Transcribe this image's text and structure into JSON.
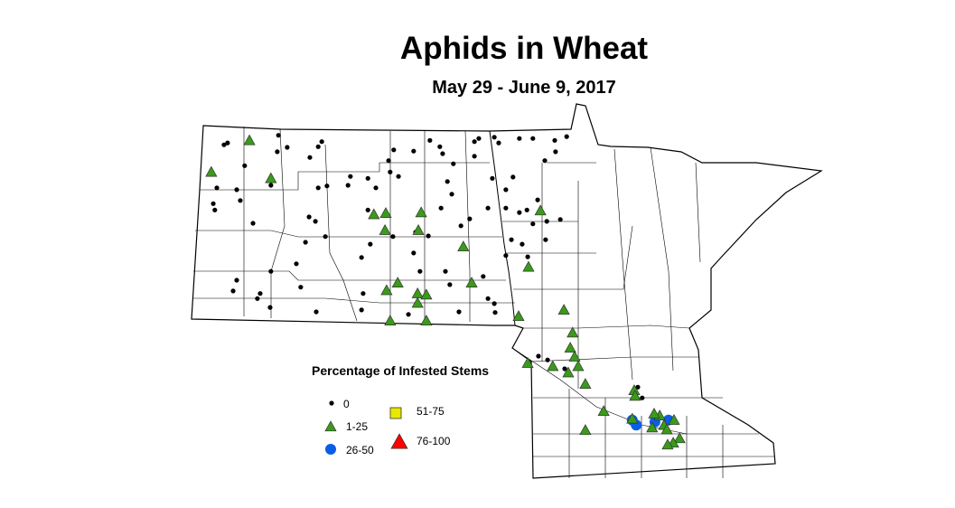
{
  "title": "Aphids in Wheat",
  "subtitle": "May 29 - June 9, 2017",
  "legend": {
    "title": "Percentage of Infested Stems",
    "classes": [
      {
        "label": "0",
        "symbol": "dot",
        "color": "#000000"
      },
      {
        "label": "1-25",
        "symbol": "triangle",
        "color": "#3a9b1a"
      },
      {
        "label": "26-50",
        "symbol": "circle",
        "color": "#0a5ee6"
      },
      {
        "label": "51-75",
        "symbol": "square",
        "color": "#e8e800"
      },
      {
        "label": "76-100",
        "symbol": "triangle-large",
        "color": "#ff0000"
      }
    ]
  },
  "map": {
    "regions": [
      "North Dakota",
      "Minnesota"
    ],
    "boundary_color": "#000000",
    "fill_color": "#ffffff",
    "observations": {
      "1-25": [
        [
          -102.68,
          48.81
        ],
        [
          -103.64,
          48.31
        ],
        [
          -102.14,
          48.21
        ],
        [
          -99.55,
          47.64
        ],
        [
          -99.25,
          47.66
        ],
        [
          -99.27,
          47.39
        ],
        [
          -98.36,
          47.67
        ],
        [
          -98.43,
          47.39
        ],
        [
          -95.36,
          47.7
        ],
        [
          -97.3,
          47.13
        ],
        [
          -95.66,
          46.81
        ],
        [
          -97.09,
          46.56
        ],
        [
          -98.45,
          46.39
        ],
        [
          -99.23,
          46.44
        ],
        [
          -98.95,
          46.56
        ],
        [
          -98.23,
          46.37
        ],
        [
          -99.14,
          45.96
        ],
        [
          -98.23,
          45.96
        ],
        [
          -98.45,
          46.24
        ],
        [
          -95.91,
          46.03
        ],
        [
          -94.77,
          46.13
        ],
        [
          -94.55,
          45.77
        ],
        [
          -94.61,
          45.53
        ],
        [
          -94.5,
          45.39
        ],
        [
          -94.66,
          45.14
        ],
        [
          -95.68,
          45.29
        ],
        [
          -95.05,
          45.24
        ],
        [
          -94.41,
          45.24
        ],
        [
          -94.23,
          44.96
        ],
        [
          -93.0,
          44.86
        ],
        [
          -92.36,
          44.46
        ],
        [
          -92.98,
          44.77
        ],
        [
          -93.05,
          44.41
        ],
        [
          -92.5,
          44.49
        ],
        [
          -92.0,
          44.39
        ],
        [
          -92.25,
          44.31
        ],
        [
          -92.55,
          44.27
        ],
        [
          -92.18,
          44.24
        ],
        [
          -91.86,
          44.1
        ],
        [
          -92.02,
          44.03
        ],
        [
          -92.16,
          44.0
        ],
        [
          -93.77,
          44.53
        ],
        [
          -94.23,
          44.23
        ]
      ],
      "26-50": [
        [
          -93.05,
          44.39
        ],
        [
          -92.95,
          44.31
        ],
        [
          -92.48,
          44.36
        ],
        [
          -92.14,
          44.39
        ]
      ],
      "0": [
        [
          -103.32,
          48.74
        ],
        [
          -103.23,
          48.77
        ],
        [
          -102.8,
          48.41
        ],
        [
          -101.95,
          48.89
        ],
        [
          -101.98,
          48.63
        ],
        [
          -101.73,
          48.7
        ],
        [
          -100.95,
          48.71
        ],
        [
          -100.86,
          48.79
        ],
        [
          -101.16,
          48.54
        ],
        [
          -100.95,
          48.06
        ],
        [
          -100.73,
          48.09
        ],
        [
          -101.18,
          47.6
        ],
        [
          -101.02,
          47.53
        ],
        [
          -100.2,
          48.1
        ],
        [
          -100.14,
          48.24
        ],
        [
          -99.7,
          48.21
        ],
        [
          -99.7,
          47.71
        ],
        [
          -99.5,
          48.06
        ],
        [
          -99.18,
          48.49
        ],
        [
          -99.14,
          48.31
        ],
        [
          -99.05,
          48.66
        ],
        [
          -98.93,
          48.24
        ],
        [
          -98.55,
          48.64
        ],
        [
          -98.14,
          48.81
        ],
        [
          -97.89,
          48.71
        ],
        [
          -97.82,
          48.6
        ],
        [
          -97.55,
          48.44
        ],
        [
          -97.02,
          48.79
        ],
        [
          -96.91,
          48.84
        ],
        [
          -97.02,
          48.56
        ],
        [
          -96.52,
          48.86
        ],
        [
          -96.41,
          48.77
        ],
        [
          -96.57,
          48.21
        ],
        [
          -95.89,
          48.84
        ],
        [
          -95.55,
          48.84
        ],
        [
          -95.0,
          48.81
        ],
        [
          -94.98,
          48.63
        ],
        [
          -94.7,
          48.87
        ],
        [
          -95.25,
          48.49
        ],
        [
          -96.05,
          48.23
        ],
        [
          -96.23,
          48.03
        ],
        [
          -95.89,
          47.67
        ],
        [
          -95.7,
          47.71
        ],
        [
          -95.55,
          47.49
        ],
        [
          -95.82,
          47.17
        ],
        [
          -95.23,
          47.24
        ],
        [
          -95.68,
          46.97
        ],
        [
          -95.2,
          47.53
        ],
        [
          -94.86,
          47.56
        ],
        [
          -97.7,
          48.16
        ],
        [
          -97.36,
          47.46
        ],
        [
          -97.14,
          47.57
        ],
        [
          -96.68,
          47.74
        ],
        [
          -97.59,
          47.96
        ],
        [
          -97.86,
          47.74
        ],
        [
          -98.18,
          47.3
        ],
        [
          -98.55,
          47.03
        ],
        [
          -98.5,
          47.36
        ],
        [
          -99.07,
          47.29
        ],
        [
          -99.64,
          47.17
        ],
        [
          -99.86,
          46.96
        ],
        [
          -100.77,
          47.29
        ],
        [
          -101.27,
          47.2
        ],
        [
          -101.5,
          46.86
        ],
        [
          -102.14,
          46.74
        ],
        [
          -103.0,
          46.6
        ],
        [
          -103.09,
          46.43
        ],
        [
          -102.48,
          46.31
        ],
        [
          -102.41,
          46.39
        ],
        [
          -102.16,
          46.17
        ],
        [
          -101.0,
          46.1
        ],
        [
          -101.39,
          46.49
        ],
        [
          -99.82,
          46.39
        ],
        [
          -99.86,
          46.13
        ],
        [
          -98.68,
          46.06
        ],
        [
          -98.39,
          46.74
        ],
        [
          -97.75,
          46.74
        ],
        [
          -97.64,
          46.53
        ],
        [
          -96.8,
          46.66
        ],
        [
          -96.68,
          46.31
        ],
        [
          -97.41,
          46.1
        ],
        [
          -96.52,
          46.23
        ],
        [
          -96.5,
          46.09
        ],
        [
          -96.23,
          46.99
        ],
        [
          -96.09,
          47.24
        ],
        [
          -95.43,
          47.87
        ],
        [
          -96.23,
          47.74
        ],
        [
          -103.5,
          48.06
        ],
        [
          -103.0,
          48.03
        ],
        [
          -103.59,
          47.81
        ],
        [
          -102.91,
          47.86
        ],
        [
          -102.14,
          48.1
        ],
        [
          -102.59,
          47.5
        ],
        [
          -103.55,
          47.71
        ],
        [
          -92.91,
          44.91
        ],
        [
          -92.8,
          44.74
        ],
        [
          -95.18,
          45.34
        ],
        [
          -94.75,
          45.2
        ],
        [
          -95.41,
          45.4
        ]
      ]
    }
  }
}
